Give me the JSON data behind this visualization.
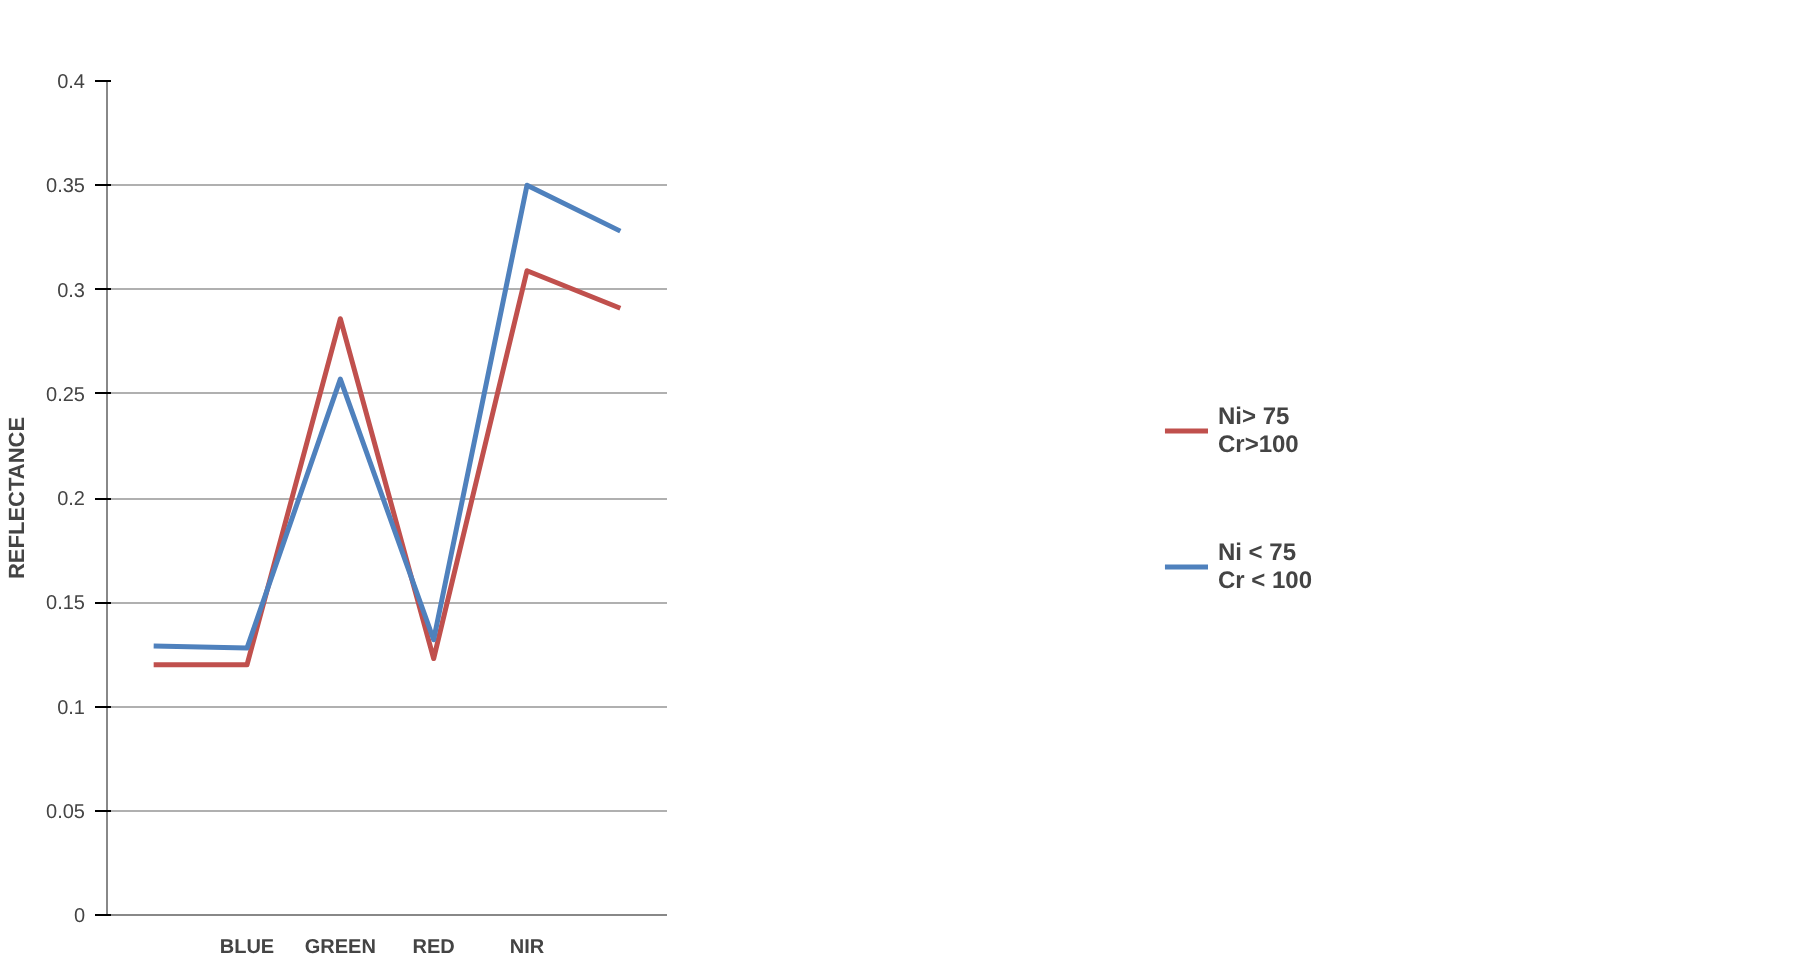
{
  "chart_data": {
    "type": "line",
    "ylabel": "REFLECTANCE",
    "categories": [
      null,
      "BLUE",
      "GREEN",
      "RED",
      "NIR",
      null
    ],
    "series": [
      {
        "name": "Ni> 75\nCr>100",
        "color": "#c0504d",
        "values": [
          0.12,
          0.12,
          0.286,
          0.123,
          0.309,
          0.291
        ]
      },
      {
        "name": "Ni < 75\nCr < 100",
        "color": "#4f81bd",
        "values": [
          0.129,
          0.128,
          0.257,
          0.132,
          0.35,
          0.328
        ]
      }
    ],
    "ylim": [
      0,
      0.4
    ],
    "yticks": [
      0,
      0.05,
      0.1,
      0.15,
      0.2,
      0.25,
      0.3,
      0.35,
      0.4
    ],
    "grid": "y",
    "legend": "right",
    "marker": "none",
    "line_style": "solid"
  }
}
